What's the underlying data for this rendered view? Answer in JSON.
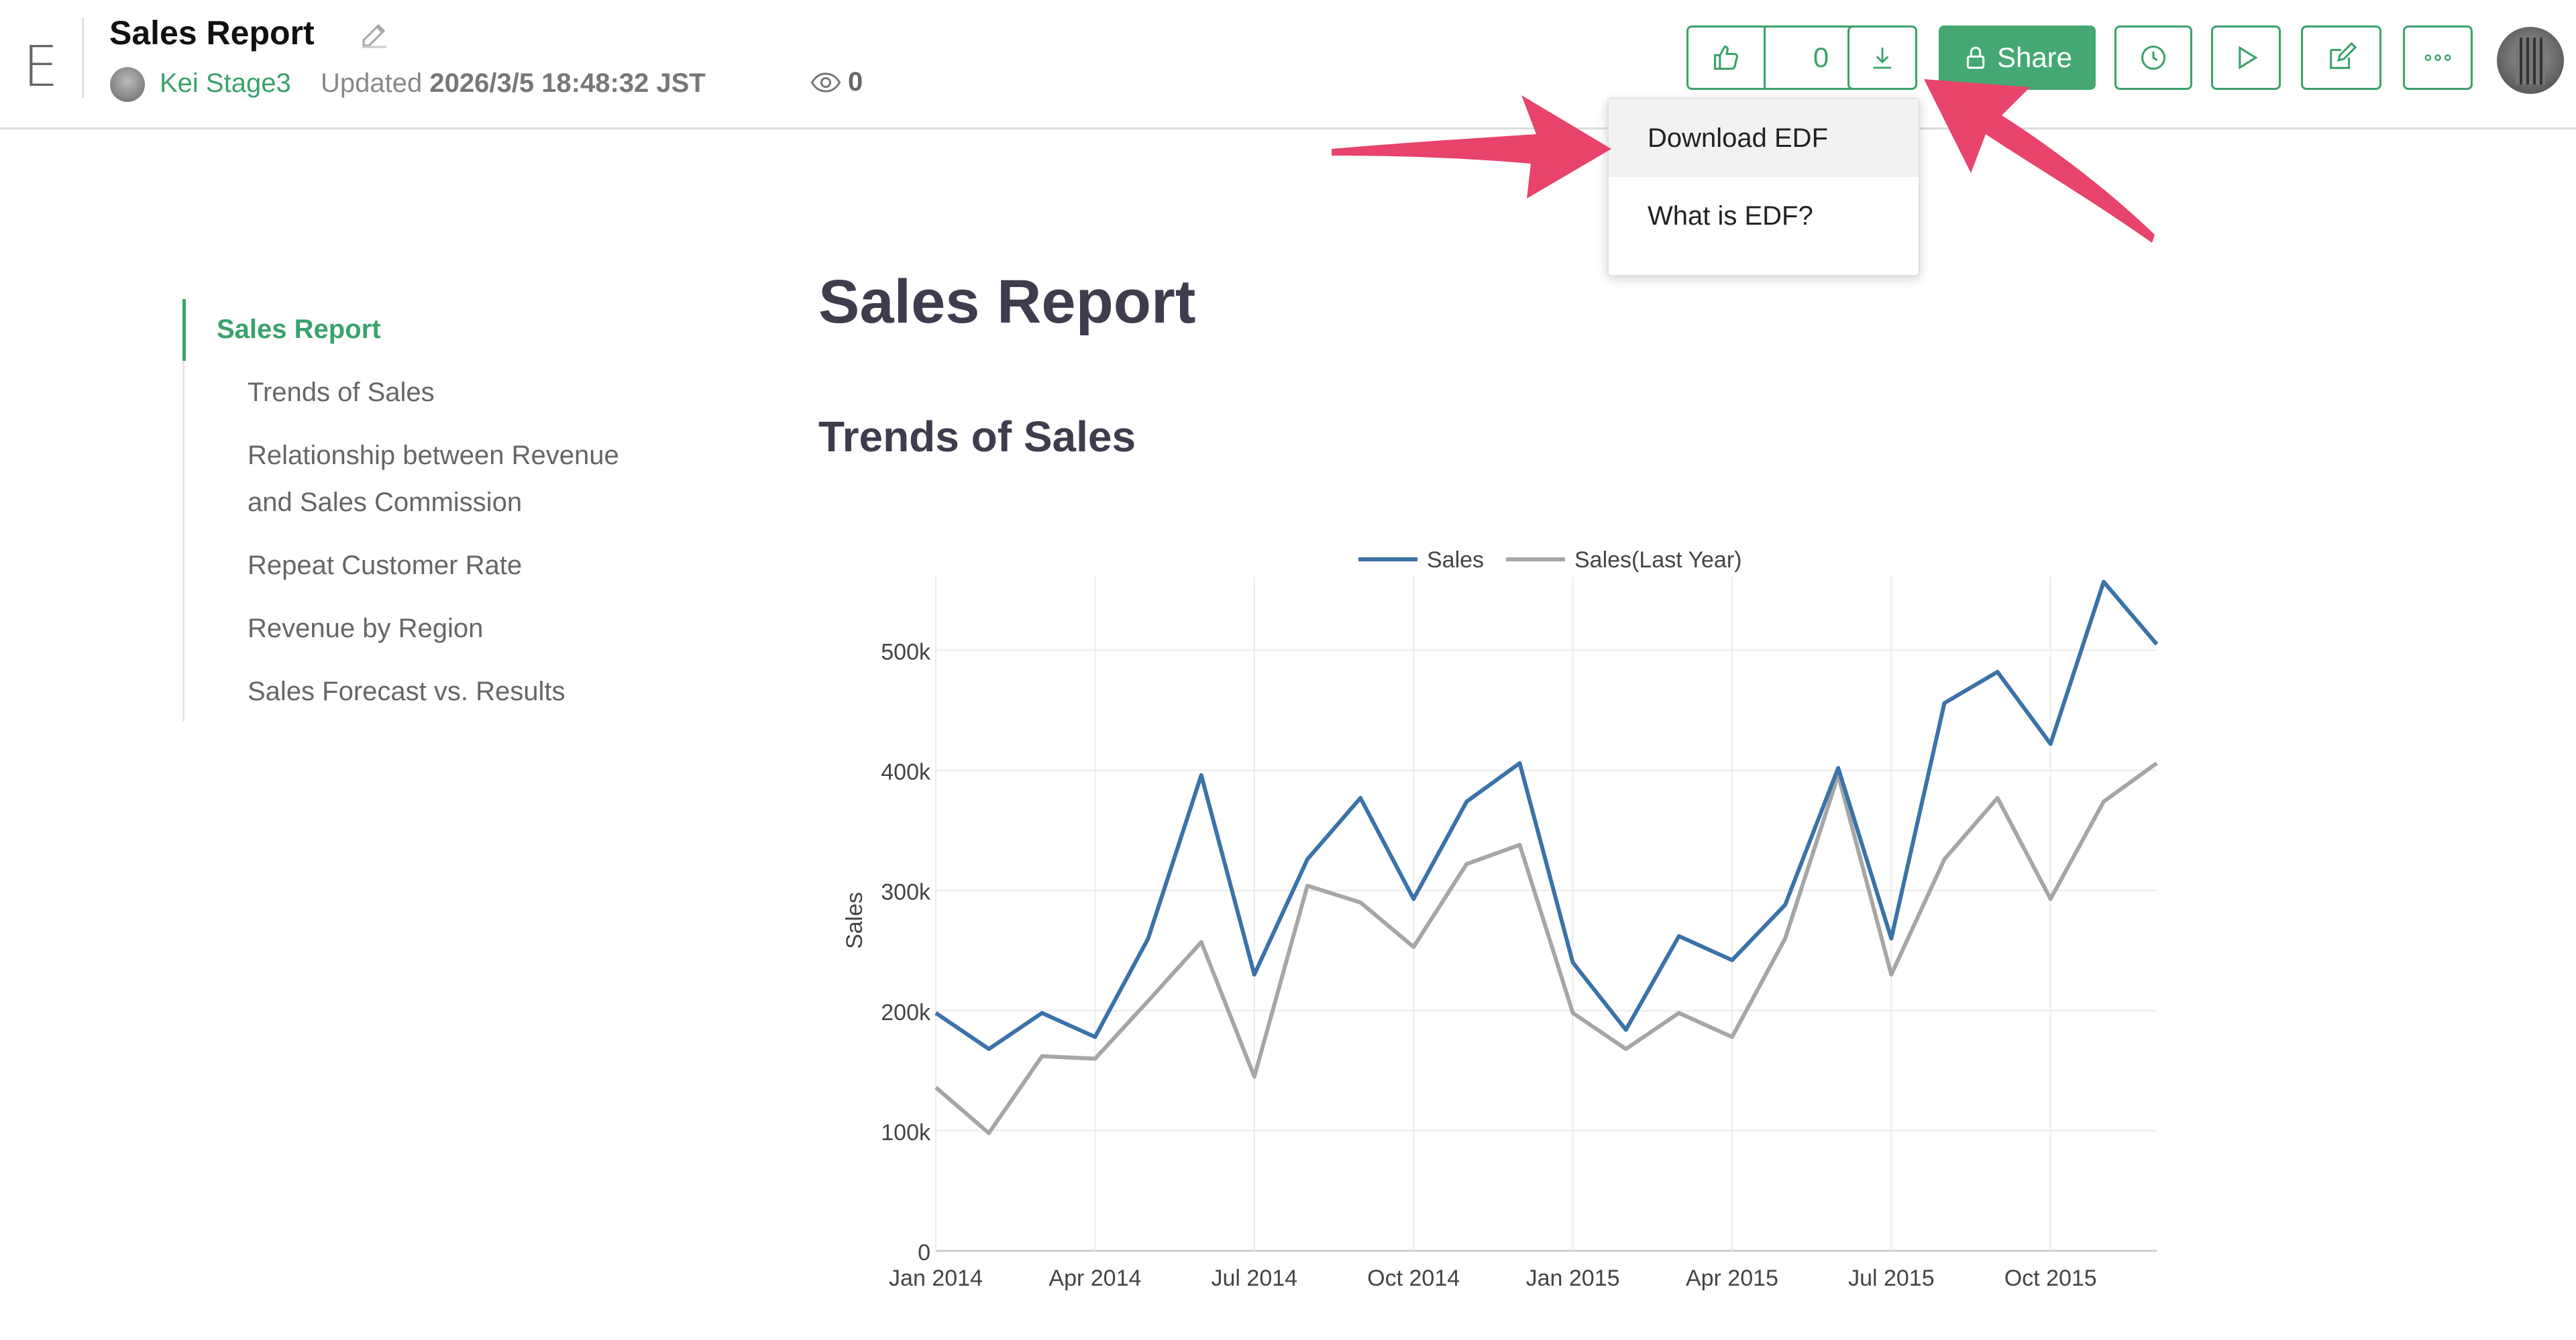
{
  "header": {
    "logo": "E",
    "title": "Sales Report",
    "user": "Kei Stage3",
    "updated_prefix": "Updated",
    "updated_time": "2026/3/5 18:48:32 JST",
    "views": "0",
    "like_count": "0",
    "share_label": "Share"
  },
  "dropdown": {
    "items": [
      "Download EDF",
      "What is EDF?"
    ]
  },
  "toc": {
    "items": [
      "Sales Report",
      "Trends of Sales",
      "Relationship between Revenue",
      "and Sales Commission",
      "Repeat Customer Rate",
      "Revenue by Region",
      "Sales Forecast vs. Results"
    ]
  },
  "main": {
    "h1": "Sales Report",
    "h2": "Trends of Sales"
  },
  "colors": {
    "accent": "#3aa26b",
    "sales": "#3b72a8",
    "last_year": "#a6a6a6",
    "arrow": "#e8436b"
  },
  "chart_data": {
    "type": "line",
    "ylabel": "Sales",
    "ylim": [
      0,
      550000
    ],
    "yticks": [
      "0",
      "100k",
      "200k",
      "300k",
      "400k",
      "500k"
    ],
    "xticks": [
      "Jan 2014",
      "Apr 2014",
      "Jul 2014",
      "Oct 2014",
      "Jan 2015",
      "Apr 2015",
      "Jul 2015",
      "Oct 2015"
    ],
    "legend": "top-center",
    "x": [
      "2014-01",
      "2014-02",
      "2014-03",
      "2014-04",
      "2014-05",
      "2014-06",
      "2014-07",
      "2014-08",
      "2014-09",
      "2014-10",
      "2014-11",
      "2014-12",
      "2015-01",
      "2015-02",
      "2015-03",
      "2015-04",
      "2015-05",
      "2015-06",
      "2015-07",
      "2015-08",
      "2015-09",
      "2015-10",
      "2015-11",
      "2015-12"
    ],
    "series": [
      {
        "name": "Sales",
        "values": [
          198000,
          168000,
          198000,
          178000,
          260000,
          396000,
          230000,
          326000,
          377000,
          293000,
          374000,
          406000,
          240000,
          184000,
          262000,
          242000,
          288000,
          402000,
          260000,
          456000,
          482000,
          422000,
          557000,
          505000
        ]
      },
      {
        "name": "Sales(Last Year)",
        "values": [
          136000,
          98000,
          162000,
          160000,
          208000,
          257000,
          145000,
          304000,
          290000,
          253000,
          322000,
          338000,
          198000,
          168000,
          198000,
          178000,
          260000,
          396000,
          230000,
          326000,
          377000,
          293000,
          374000,
          406000
        ]
      }
    ]
  }
}
